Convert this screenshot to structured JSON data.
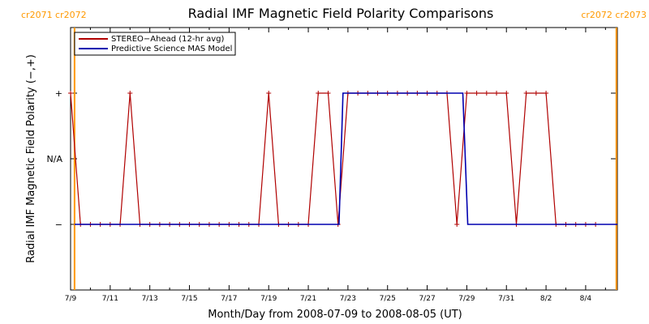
{
  "chart_data": {
    "type": "line",
    "title": "Radial IMF Magnetic Field Polarity Comparisons",
    "xlabel": "Month/Day from 2008-07-09 to 2008-08-05 (UT)",
    "ylabel": "Radial IMF Magnetic Field Polarity (−,+)",
    "x_range_days": [
      0,
      27.6
    ],
    "x_ticks": [
      {
        "day": 0,
        "label": "7/9"
      },
      {
        "day": 2,
        "label": "7/11"
      },
      {
        "day": 4,
        "label": "7/13"
      },
      {
        "day": 6,
        "label": "7/15"
      },
      {
        "day": 8,
        "label": "7/17"
      },
      {
        "day": 10,
        "label": "7/19"
      },
      {
        "day": 12,
        "label": "7/21"
      },
      {
        "day": 14,
        "label": "7/23"
      },
      {
        "day": 16,
        "label": "7/25"
      },
      {
        "day": 18,
        "label": "7/27"
      },
      {
        "day": 20,
        "label": "7/29"
      },
      {
        "day": 22,
        "label": "7/31"
      },
      {
        "day": 24,
        "label": "8/2"
      },
      {
        "day": 26,
        "label": "8/4"
      }
    ],
    "y_range": [
      -2,
      2
    ],
    "y_ticks": [
      {
        "value": 1,
        "label": "+"
      },
      {
        "value": 0,
        "label": "N/A"
      },
      {
        "value": -1,
        "label": "−"
      }
    ],
    "legend_position": "top-left",
    "series": [
      {
        "name": "STEREO−Ahead (12-hr avg)",
        "color": "#b00000",
        "markers": true,
        "points": [
          [
            0,
            1
          ],
          [
            0.5,
            -1
          ],
          [
            1,
            -1
          ],
          [
            1.5,
            -1
          ],
          [
            2,
            -1
          ],
          [
            2.5,
            -1
          ],
          [
            3,
            1
          ],
          [
            3.5,
            -1
          ],
          [
            4,
            -1
          ],
          [
            4.5,
            -1
          ],
          [
            5,
            -1
          ],
          [
            5.5,
            -1
          ],
          [
            6,
            -1
          ],
          [
            6.5,
            -1
          ],
          [
            7,
            -1
          ],
          [
            7.5,
            -1
          ],
          [
            8,
            -1
          ],
          [
            8.5,
            -1
          ],
          [
            9,
            -1
          ],
          [
            9.5,
            -1
          ],
          [
            10,
            1
          ],
          [
            10.5,
            -1
          ],
          [
            11,
            -1
          ],
          [
            11.5,
            -1
          ],
          [
            12,
            -1
          ],
          [
            12.5,
            1
          ],
          [
            13,
            1
          ],
          [
            13.5,
            -1
          ],
          [
            14,
            1
          ],
          [
            14.5,
            1
          ],
          [
            15,
            1
          ],
          [
            15.5,
            1
          ],
          [
            16,
            1
          ],
          [
            16.5,
            1
          ],
          [
            17,
            1
          ],
          [
            17.5,
            1
          ],
          [
            18,
            1
          ],
          [
            18.5,
            1
          ],
          [
            19,
            1
          ],
          [
            19.5,
            -1
          ],
          [
            20,
            1
          ],
          [
            20.5,
            1
          ],
          [
            21,
            1
          ],
          [
            21.5,
            1
          ],
          [
            22,
            1
          ],
          [
            22.5,
            -1
          ],
          [
            23,
            1
          ],
          [
            23.5,
            1
          ],
          [
            24,
            1
          ],
          [
            24.5,
            -1
          ],
          [
            25,
            -1
          ],
          [
            25.5,
            -1
          ],
          [
            26,
            -1
          ],
          [
            26.5,
            -1
          ]
        ]
      },
      {
        "name": "Predictive Science MAS Model",
        "color": "#0000b0",
        "markers": false,
        "points": [
          [
            0.2,
            -1
          ],
          [
            13.55,
            -1
          ],
          [
            13.75,
            1
          ],
          [
            19.8,
            1
          ],
          [
            20.05,
            -1
          ],
          [
            27.6,
            -1
          ]
        ]
      }
    ],
    "carrington_markers": [
      {
        "day": 0.2,
        "color": "#ff9900"
      },
      {
        "day": 27.55,
        "color": "#ff9900"
      }
    ],
    "carrington_labels": {
      "left": "cr2071  cr2072",
      "right": "cr2072  cr2073"
    }
  }
}
